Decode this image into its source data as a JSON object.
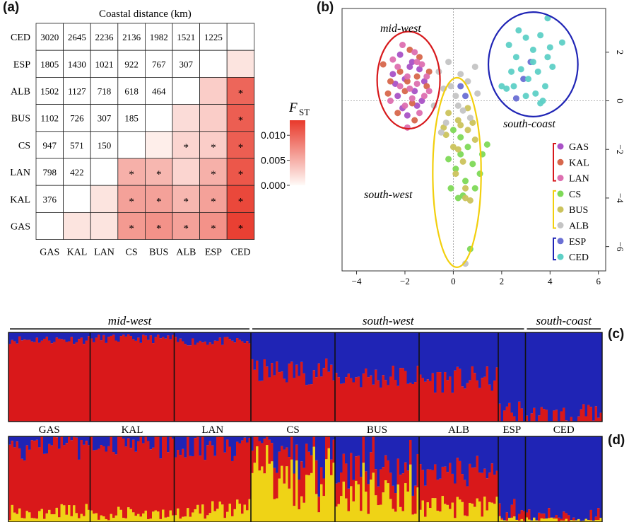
{
  "panels": {
    "a": "(a)",
    "b": "(b)",
    "c": "(c)",
    "d": "(d)"
  },
  "chart_data": [
    {
      "type": "heatmap",
      "panel": "(a)",
      "title": "Coastal distance (km)",
      "populations": [
        "GAS",
        "KAL",
        "LAN",
        "CS",
        "BUS",
        "ALB",
        "ESP",
        "CED"
      ],
      "row_labels": [
        "CED",
        "ESP",
        "ALB",
        "BUS",
        "CS",
        "LAN",
        "KAL",
        "GAS"
      ],
      "col_labels": [
        "GAS",
        "KAL",
        "LAN",
        "CS",
        "BUS",
        "ALB",
        "ESP",
        "CED"
      ],
      "distances": {
        "CED": [
          3020,
          2645,
          2236,
          2136,
          1982,
          1521,
          1225
        ],
        "ESP": [
          1805,
          1430,
          1021,
          922,
          767,
          307
        ],
        "ALB": [
          1502,
          1127,
          718,
          618,
          464
        ],
        "BUS": [
          1102,
          726,
          307,
          185
        ],
        "CS": [
          947,
          571,
          150
        ],
        "LAN": [
          798,
          422
        ],
        "KAL": [
          376
        ]
      },
      "fst": {
        "ESP": [
          null,
          null,
          null,
          null,
          null,
          null,
          null,
          0.0015
        ],
        "ALB": [
          null,
          null,
          null,
          null,
          null,
          null,
          0.003,
          0.01
        ],
        "BUS": [
          null,
          null,
          null,
          null,
          null,
          0.002,
          0.003,
          0.0105
        ],
        "CS": [
          null,
          null,
          null,
          null,
          0.0008,
          0.0025,
          0.003,
          0.0105
        ],
        "LAN": [
          null,
          null,
          null,
          0.005,
          0.0045,
          0.0025,
          0.005,
          0.011
        ],
        "KAL": [
          null,
          null,
          0.0015,
          0.006,
          0.006,
          0.0045,
          0.006,
          0.012
        ],
        "GAS": [
          null,
          0.0015,
          0.0015,
          0.0065,
          0.007,
          0.006,
          0.007,
          0.0125
        ]
      },
      "significant": {
        "ALB": [
          7
        ],
        "BUS": [
          7
        ],
        "CS": [
          5,
          6,
          7
        ],
        "LAN": [
          3,
          4,
          6,
          7
        ],
        "KAL": [
          3,
          4,
          5,
          6,
          7
        ],
        "GAS": [
          3,
          4,
          5,
          6,
          7
        ]
      },
      "star": "*",
      "legend": {
        "title": "F",
        "subscript": "ST",
        "ticks": [
          "0.010",
          "0.005",
          "0.000"
        ],
        "min": 0,
        "max": 0.013,
        "tick_values": [
          0.01,
          0.005,
          0.0
        ]
      },
      "color_low": "#fffaf7",
      "color_high": "#e8392b"
    },
    {
      "type": "scatter",
      "panel": "(b)",
      "xlim": [
        -4.6,
        6.3
      ],
      "ylim": [
        -7.0,
        3.8
      ],
      "xticks": [
        -4,
        -2,
        0,
        2,
        4,
        6
      ],
      "xtick_labels": [
        "−4",
        "−2",
        "0",
        "2",
        "4",
        "6"
      ],
      "yticks": [
        2,
        0,
        -2,
        -4,
        -6
      ],
      "ytick_labels": [
        "2",
        "0",
        "−2",
        "−4",
        "−6"
      ],
      "group_labels": {
        "mid_west": "mid-west",
        "south_west": "south-west",
        "south_coast": "south-coast"
      },
      "ellipses": [
        {
          "name": "mid-west",
          "cx": -1.85,
          "cy": 0.85,
          "rx": 1.3,
          "ry": 2.0,
          "color": "#d7191c"
        },
        {
          "name": "south-west",
          "cx": 0.15,
          "cy": -2.95,
          "rx": 1.0,
          "ry": 3.9,
          "color": "#f2cf0d"
        },
        {
          "name": "south-coast",
          "cx": 3.3,
          "cy": 1.5,
          "rx": 1.85,
          "ry": 2.15,
          "color": "#1f24b5"
        }
      ],
      "legend_groups": [
        {
          "color": "#d7191c",
          "entries": [
            "GAS",
            "KAL",
            "LAN"
          ]
        },
        {
          "color": "#f2cf0d",
          "entries": [
            "CS",
            "BUS",
            "ALB"
          ]
        },
        {
          "color": "#1f24b5",
          "entries": [
            "ESP",
            "CED"
          ]
        }
      ],
      "series": [
        {
          "name": "GAS",
          "color": "#a952c6",
          "points": [
            [
              -2.2,
              1.9
            ],
            [
              -1.7,
              1.6
            ],
            [
              -1.4,
              1.3
            ],
            [
              -2.0,
              0.9
            ],
            [
              -1.6,
              0.4
            ],
            [
              -2.3,
              0.2
            ],
            [
              -1.5,
              -0.2
            ],
            [
              -1.9,
              -0.6
            ],
            [
              -2.5,
              1.1
            ],
            [
              -1.2,
              0.8
            ],
            [
              -1.8,
              1.4
            ],
            [
              -2.1,
              -0.3
            ],
            [
              -1.3,
              0.0
            ],
            [
              -2.4,
              0.7
            ]
          ]
        },
        {
          "name": "KAL",
          "color": "#d7674c",
          "points": [
            [
              -2.9,
              1.5
            ],
            [
              -2.6,
              0.8
            ],
            [
              -2.2,
              1.2
            ],
            [
              -1.8,
              2.1
            ],
            [
              -1.5,
              1.0
            ],
            [
              -2.0,
              0.4
            ],
            [
              -1.1,
              0.6
            ],
            [
              -1.7,
              -0.1
            ],
            [
              -2.3,
              -0.5
            ],
            [
              -1.4,
              1.8
            ],
            [
              -2.7,
              0.3
            ],
            [
              -1.0,
              1.2
            ],
            [
              -1.9,
              0.8
            ],
            [
              -1.6,
              -0.8
            ]
          ]
        },
        {
          "name": "LAN",
          "color": "#dd6fb0",
          "points": [
            [
              -2.5,
              1.7
            ],
            [
              -2.1,
              2.3
            ],
            [
              -1.6,
              2.0
            ],
            [
              -1.3,
              1.5
            ],
            [
              -1.9,
              1.0
            ],
            [
              -2.2,
              0.6
            ],
            [
              -1.5,
              0.7
            ],
            [
              -1.2,
              0.2
            ],
            [
              -1.7,
              0.1
            ],
            [
              -2.0,
              -0.2
            ],
            [
              -1.4,
              -0.5
            ],
            [
              -2.3,
              1.4
            ],
            [
              -1.8,
              0.5
            ],
            [
              -1.1,
              1.0
            ],
            [
              -2.6,
              0.0
            ],
            [
              -1.9,
              -1.1
            ],
            [
              -1.5,
              1.6
            ],
            [
              -1.0,
              0.4
            ]
          ]
        },
        {
          "name": "CS",
          "color": "#7ed957",
          "points": [
            [
              0.3,
              -2.2
            ],
            [
              0.1,
              -2.8
            ],
            [
              0.5,
              -3.3
            ],
            [
              -0.1,
              -3.6
            ],
            [
              0.8,
              -2.6
            ],
            [
              1.1,
              -3.0
            ],
            [
              0.2,
              -4.0
            ],
            [
              0.6,
              -1.9
            ],
            [
              -0.2,
              -2.4
            ],
            [
              1.4,
              -1.8
            ],
            [
              0.4,
              -3.9
            ],
            [
              0.9,
              -3.6
            ],
            [
              0.3,
              -1.5
            ],
            [
              1.2,
              -2.2
            ],
            [
              0.7,
              -6.1
            ],
            [
              0.0,
              -1.2
            ]
          ]
        },
        {
          "name": "BUS",
          "color": "#cbc35c",
          "points": [
            [
              -0.3,
              -1.4
            ],
            [
              0.0,
              -1.9
            ],
            [
              0.4,
              -2.5
            ],
            [
              0.2,
              -0.8
            ],
            [
              0.6,
              -1.2
            ],
            [
              -0.2,
              -0.5
            ],
            [
              0.8,
              -0.9
            ],
            [
              0.1,
              -3.0
            ],
            [
              0.5,
              -3.6
            ],
            [
              0.7,
              -4.1
            ],
            [
              0.3,
              -1.0
            ],
            [
              -0.4,
              -1.1
            ],
            [
              0.9,
              -1.6
            ],
            [
              0.6,
              -0.3
            ],
            [
              0.2,
              -2.0
            ],
            [
              0.5,
              -4.0
            ]
          ]
        },
        {
          "name": "ALB",
          "color": "#c4c4c4",
          "points": [
            [
              -0.6,
              1.2
            ],
            [
              -0.2,
              1.6
            ],
            [
              0.3,
              1.1
            ],
            [
              -0.4,
              0.5
            ],
            [
              0.1,
              0.2
            ],
            [
              -0.8,
              -0.2
            ],
            [
              0.4,
              -0.4
            ],
            [
              -0.3,
              -0.9
            ],
            [
              0.6,
              0.8
            ],
            [
              1.0,
              0.3
            ],
            [
              0.2,
              -0.2
            ],
            [
              -0.5,
              -1.3
            ],
            [
              0.7,
              -0.7
            ],
            [
              0.9,
              1.4
            ],
            [
              -0.1,
              0.6
            ],
            [
              0.5,
              -6.7
            ]
          ]
        },
        {
          "name": "ESP",
          "color": "#6a6fd4",
          "points": [
            [
              0.3,
              0.6
            ],
            [
              0.5,
              0.2
            ],
            [
              2.9,
              0.9
            ],
            [
              2.6,
              0.1
            ],
            [
              3.2,
              1.6
            ]
          ]
        },
        {
          "name": "CED",
          "color": "#5ed0c6",
          "points": [
            [
              2.3,
              2.3
            ],
            [
              2.6,
              1.8
            ],
            [
              3.0,
              2.6
            ],
            [
              3.3,
              2.1
            ],
            [
              3.6,
              2.7
            ],
            [
              3.9,
              1.8
            ],
            [
              2.8,
              1.3
            ],
            [
              3.1,
              0.9
            ],
            [
              3.5,
              1.2
            ],
            [
              3.8,
              0.6
            ],
            [
              4.1,
              1.4
            ],
            [
              2.5,
              0.6
            ],
            [
              2.2,
              0.5
            ],
            [
              3.0,
              0.2
            ],
            [
              3.4,
              0.3
            ],
            [
              3.7,
              0.0
            ],
            [
              4.5,
              2.4
            ],
            [
              3.9,
              3.4
            ],
            [
              2.7,
              2.9
            ],
            [
              3.3,
              1.6
            ],
            [
              2.4,
              1.2
            ],
            [
              3.6,
              -0.1
            ],
            [
              2.0,
              0.6
            ],
            [
              4.0,
              2.2
            ]
          ]
        }
      ]
    },
    {
      "type": "bar",
      "panel": "(c)",
      "stacked": true,
      "k": 2,
      "colors": [
        "#d9181a",
        "#1f24b5"
      ],
      "region_labels": [
        "mid-west",
        "south-west",
        "south-coast"
      ],
      "populations": [
        "GAS",
        "KAL",
        "LAN",
        "CS",
        "BUS",
        "ALB",
        "ESP",
        "CED"
      ],
      "pop_sizes": [
        33,
        34,
        31,
        34,
        34,
        32,
        11,
        31
      ],
      "regions": [
        [
          0,
          2
        ],
        [
          3,
          6
        ],
        [
          7,
          7
        ]
      ],
      "mean_red": [
        0.92,
        0.93,
        0.9,
        0.56,
        0.5,
        0.47,
        0.1,
        0.05
      ]
    },
    {
      "type": "bar",
      "panel": "(d)",
      "stacked": true,
      "k": 3,
      "colors": [
        "#efd316",
        "#d9181a",
        "#1f24b5"
      ],
      "population_labels": [
        "GAS",
        "KAL",
        "LAN",
        "CS",
        "BUS",
        "ALB",
        "ESP",
        "CED"
      ],
      "pop_sizes": [
        33,
        34,
        31,
        34,
        34,
        32,
        11,
        31
      ],
      "mean_yellow": [
        0.12,
        0.1,
        0.16,
        0.5,
        0.4,
        0.17,
        0.04,
        0.03
      ],
      "mean_red": [
        0.8,
        0.83,
        0.74,
        0.3,
        0.33,
        0.42,
        0.08,
        0.03
      ]
    }
  ]
}
